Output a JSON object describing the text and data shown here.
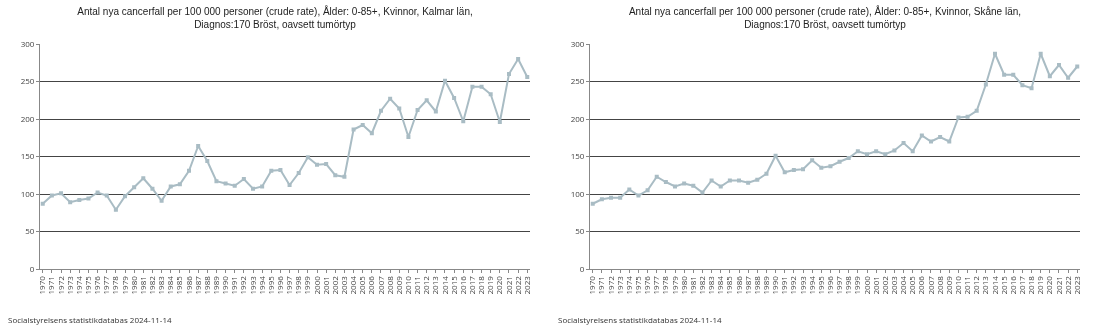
{
  "chart_data": [
    {
      "type": "line",
      "title": "Antal nya cancerfall per 100 000 personer (crude rate), Ålder: 0-85+, Kvinnor, Kalmar län, Diagnos:170 Bröst, oavsett tumörtyp",
      "categories": [
        "1970",
        "1971",
        "1972",
        "1973",
        "1974",
        "1975",
        "1976",
        "1977",
        "1978",
        "1979",
        "1980",
        "1981",
        "1982",
        "1983",
        "1984",
        "1985",
        "1986",
        "1987",
        "1988",
        "1989",
        "1990",
        "1991",
        "1992",
        "1993",
        "1994",
        "1995",
        "1996",
        "1997",
        "1998",
        "1999",
        "2000",
        "2001",
        "2002",
        "2003",
        "2004",
        "2005",
        "2006",
        "2007",
        "2008",
        "2009",
        "2010",
        "2011",
        "2012",
        "2013",
        "2014",
        "2015",
        "2016",
        "2017",
        "2018",
        "2019",
        "2020",
        "2021",
        "2022",
        "2023"
      ],
      "series": [
        {
          "color": "#a9bcc4",
          "values": [
            87,
            98,
            101,
            89,
            92,
            94,
            102,
            98,
            79,
            97,
            109,
            121,
            107,
            91,
            110,
            113,
            131,
            164,
            144,
            117,
            114,
            111,
            120,
            107,
            110,
            131,
            132,
            112,
            128,
            149,
            139,
            140,
            125,
            123,
            186,
            192,
            181,
            211,
            227,
            214,
            176,
            212,
            225,
            210,
            251,
            228,
            197,
            243,
            243,
            233,
            196,
            260,
            280,
            256
          ]
        }
      ],
      "ylim": [
        0,
        300
      ],
      "yticks": [
        0,
        50,
        100,
        150,
        200,
        250,
        300
      ],
      "grid": "y",
      "marker": "square",
      "line_style": "solid",
      "annotations": [
        "Socialstyrelsens statistikdatabas 2024-11-14"
      ]
    },
    {
      "type": "line",
      "title": "Antal nya cancerfall per 100 000 personer (crude rate), Ålder: 0-85+, Kvinnor, Skåne län, Diagnos:170 Bröst, oavsett tumörtyp",
      "categories": [
        "1970",
        "1971",
        "1972",
        "1973",
        "1974",
        "1975",
        "1976",
        "1977",
        "1978",
        "1979",
        "1980",
        "1981",
        "1982",
        "1983",
        "1984",
        "1985",
        "1986",
        "1987",
        "1988",
        "1989",
        "1990",
        "1991",
        "1992",
        "1993",
        "1994",
        "1995",
        "1996",
        "1997",
        "1998",
        "1999",
        "2000",
        "2001",
        "2002",
        "2003",
        "2004",
        "2005",
        "2006",
        "2007",
        "2008",
        "2009",
        "2010",
        "2011",
        "2012",
        "2013",
        "2014",
        "2015",
        "2016",
        "2017",
        "2018",
        "2019",
        "2020",
        "2021",
        "2022",
        "2023"
      ],
      "series": [
        {
          "color": "#a9bcc4",
          "values": [
            87,
            93,
            95,
            95,
            106,
            98,
            105,
            123,
            116,
            110,
            114,
            111,
            102,
            118,
            110,
            118,
            118,
            115,
            119,
            127,
            151,
            129,
            132,
            133,
            145,
            135,
            137,
            143,
            148,
            157,
            153,
            157,
            153,
            158,
            168,
            157,
            178,
            170,
            176,
            170,
            202,
            203,
            211,
            246,
            287,
            259,
            259,
            245,
            241,
            287,
            257,
            272,
            255,
            270
          ]
        }
      ],
      "ylim": [
        0,
        300
      ],
      "yticks": [
        0,
        50,
        100,
        150,
        200,
        250,
        300
      ],
      "grid": "y",
      "marker": "square",
      "line_style": "solid",
      "annotations": [
        "Socialstyrelsens statistikdatabas 2024-11-14"
      ]
    }
  ]
}
